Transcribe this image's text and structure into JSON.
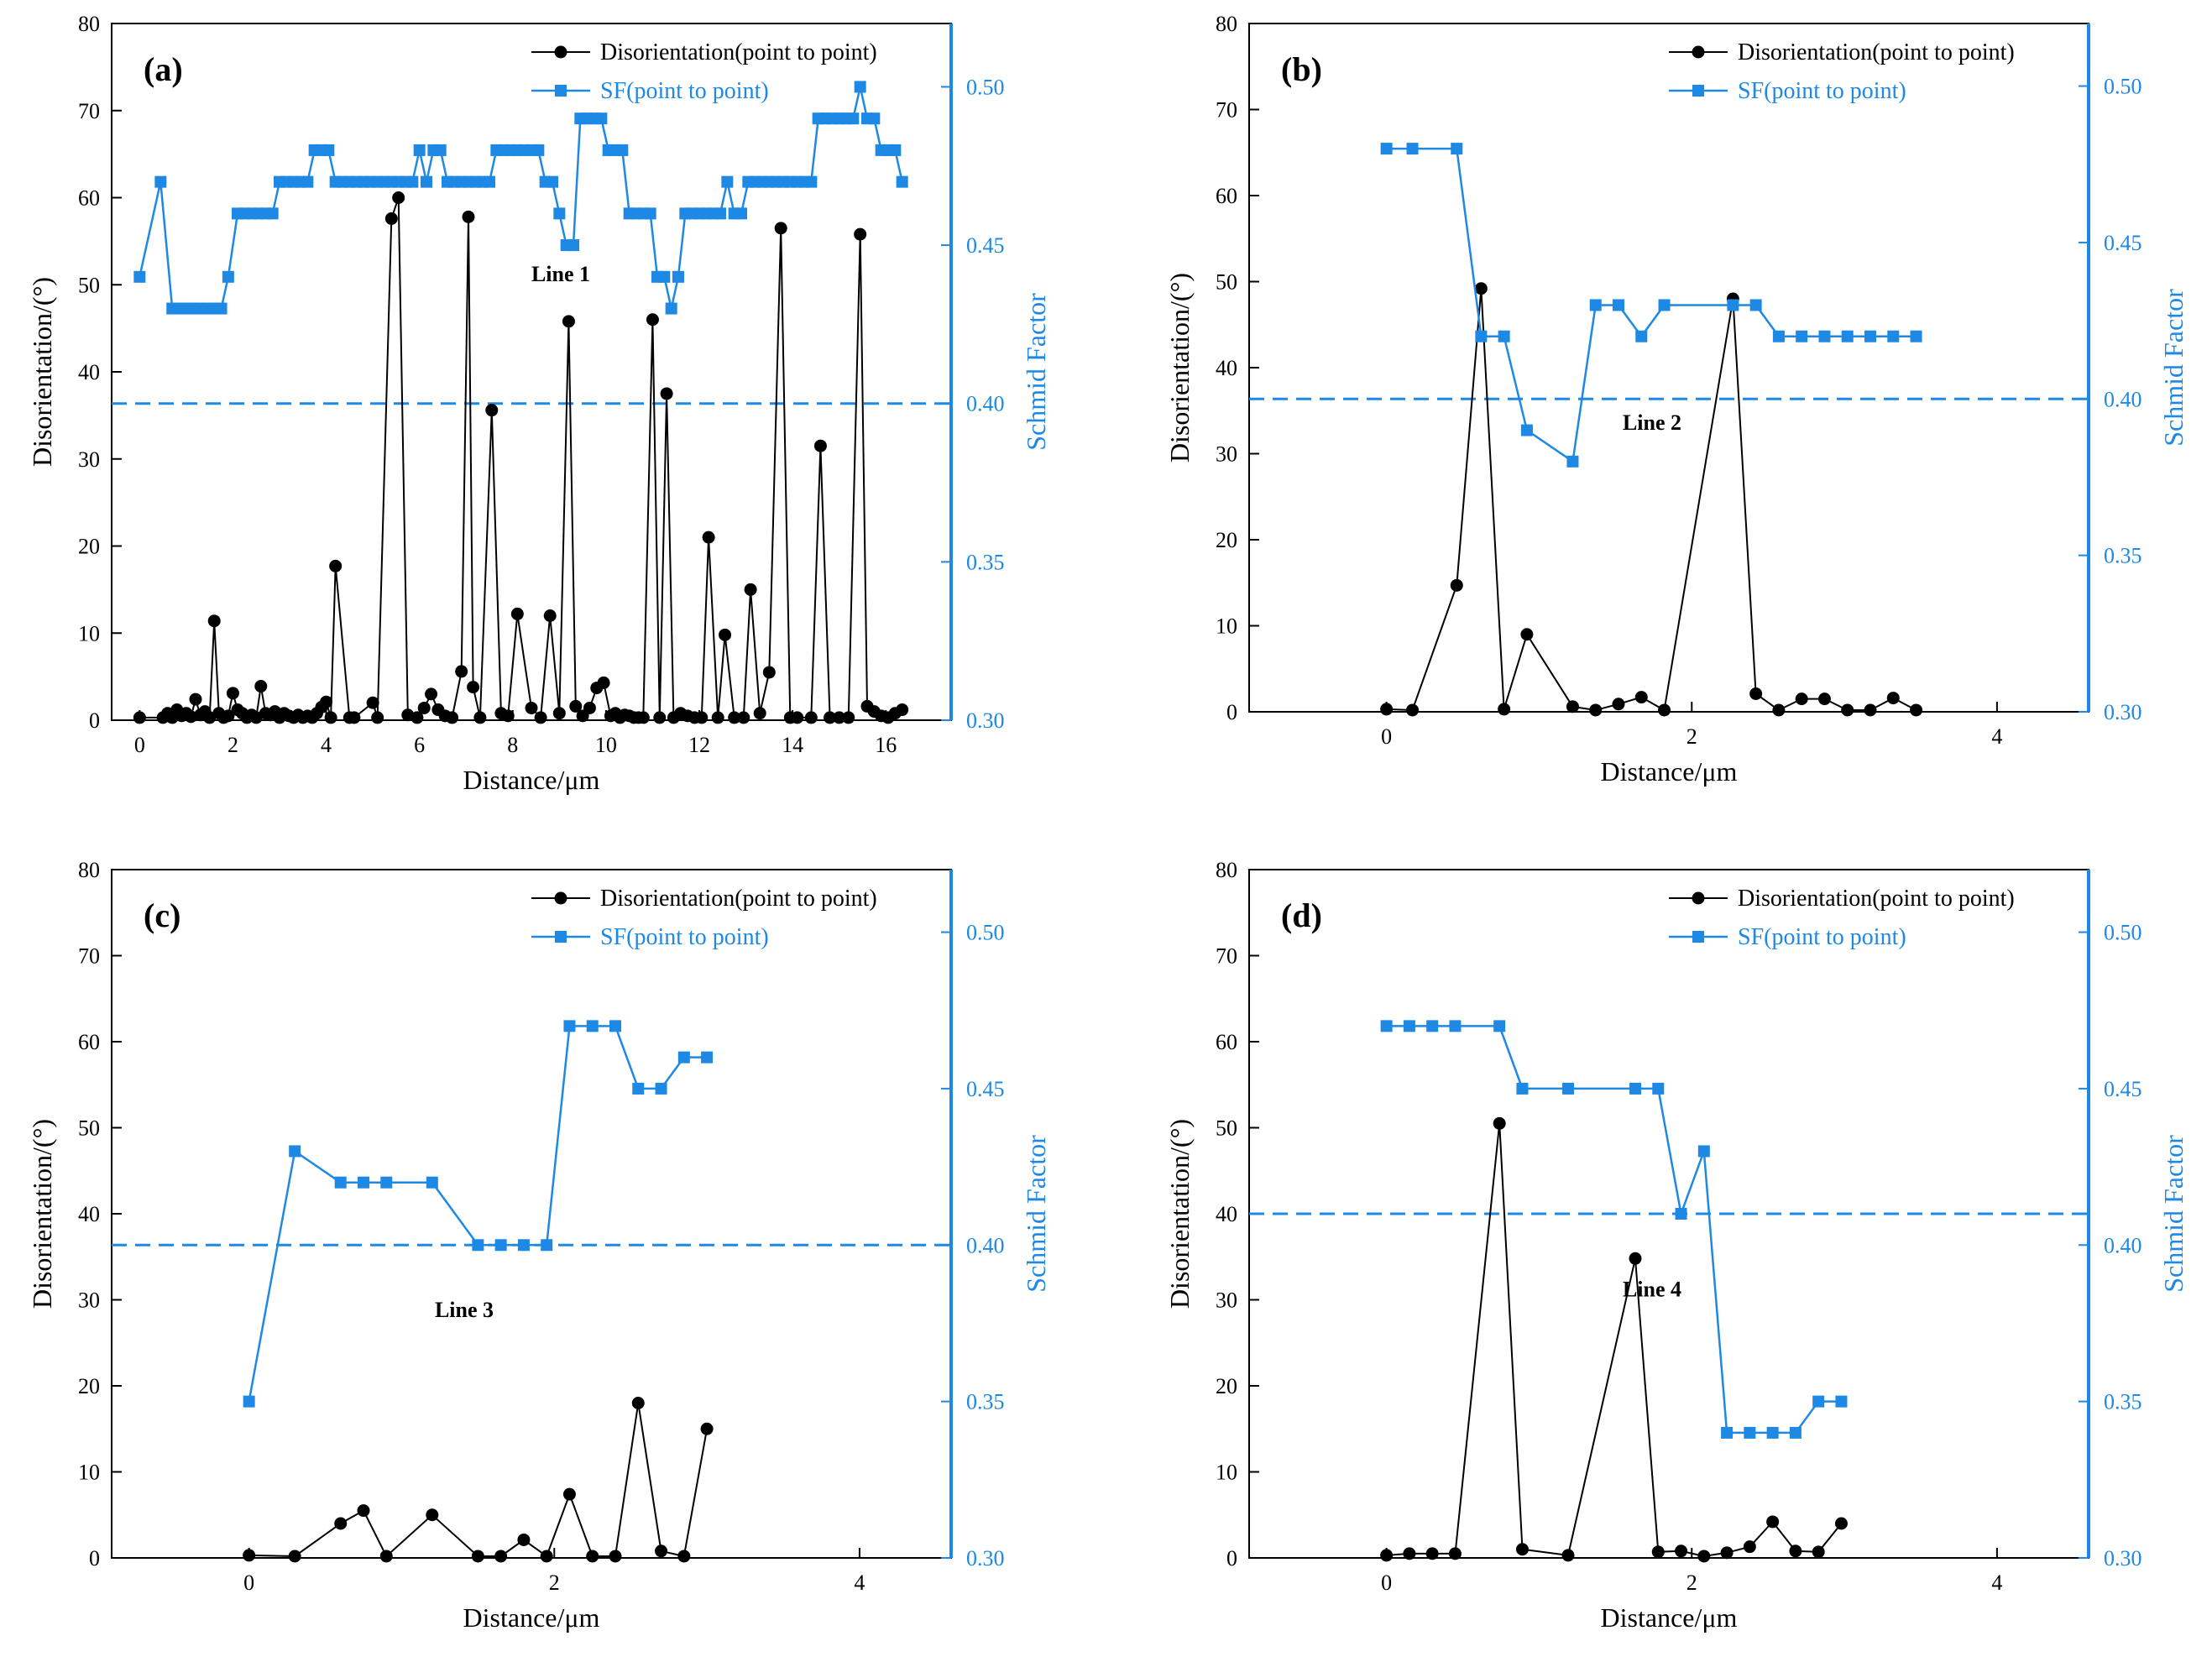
{
  "colors": {
    "disorientation": "#000000",
    "sf": "#1e88e5",
    "axis": "#000000"
  },
  "chart_data": [
    {
      "type": "line",
      "panel_label": "(a)",
      "line_label": "Line 1",
      "xlabel": "Distance/μm",
      "ylabel": "Disorientation/(°)",
      "y2label": "Schmid Factor",
      "xlim": [
        -0.6,
        17.4
      ],
      "ylim": [
        0,
        80
      ],
      "y2lim": [
        0.3,
        0.52
      ],
      "xticks": [
        0,
        2,
        4,
        6,
        8,
        10,
        12,
        14,
        16
      ],
      "yticks": [
        0,
        10,
        20,
        30,
        40,
        50,
        60,
        70,
        80
      ],
      "y2ticks": [
        0.3,
        0.35,
        0.4,
        0.45,
        0.5
      ],
      "legend": [
        "Disorientation(point to point)",
        "SF(point to point)"
      ],
      "reference_line": 0.4,
      "series": [
        {
          "name": "Disorientation(point to point)",
          "axis": "left",
          "x": [
            0,
            0.5,
            0.6,
            0.7,
            0.8,
            0.9,
            1,
            1.1,
            1.2,
            1.3,
            1.4,
            1.5,
            1.6,
            1.7,
            1.8,
            1.9,
            2.0,
            2.1,
            2.2,
            2.3,
            2.4,
            2.5,
            2.6,
            2.7,
            2.8,
            2.9,
            3.0,
            3.1,
            3.2,
            3.3,
            3.4,
            3.5,
            3.6,
            3.7,
            3.8,
            3.9,
            4.0,
            4.1,
            4.2,
            4.5,
            4.6,
            5.0,
            5.1,
            5.4,
            5.55,
            5.75,
            5.95,
            6.1,
            6.25,
            6.4,
            6.55,
            6.7,
            6.9,
            7.05,
            7.15,
            7.3,
            7.55,
            7.75,
            7.9,
            8.1,
            8.4,
            8.6,
            8.8,
            9.0,
            9.2,
            9.35,
            9.5,
            9.65,
            9.8,
            9.95,
            10.1,
            10.2,
            10.3,
            10.4,
            10.5,
            10.6,
            10.7,
            10.8,
            11.0,
            11.15,
            11.3,
            11.45,
            11.6,
            11.75,
            11.9,
            12.05,
            12.2,
            12.4,
            12.55,
            12.75,
            12.95,
            13.1,
            13.3,
            13.5,
            13.75,
            13.95,
            14.1,
            14.4,
            14.6,
            14.8,
            15.0,
            15.2,
            15.45,
            15.6,
            15.75,
            15.9,
            16.05,
            16.2,
            16.35
          ],
          "values": [
            0.3,
            0.3,
            0.8,
            0.3,
            1.2,
            0.5,
            0.8,
            0.4,
            2.4,
            0.6,
            1.0,
            0.3,
            11.4,
            0.8,
            0.3,
            0.5,
            3.1,
            1.2,
            0.8,
            0.3,
            0.6,
            0.3,
            3.9,
            0.8,
            0.6,
            1.0,
            0.3,
            0.8,
            0.5,
            0.3,
            0.6,
            0.3,
            0.5,
            0.3,
            0.8,
            1.5,
            2.1,
            0.3,
            17.7,
            0.3,
            0.3,
            2.0,
            0.3,
            57.6,
            60.0,
            0.6,
            0.3,
            1.4,
            3.0,
            1.2,
            0.5,
            0.3,
            5.6,
            57.8,
            3.8,
            0.3,
            35.6,
            0.8,
            0.5,
            12.2,
            1.4,
            0.3,
            12.0,
            0.8,
            45.8,
            1.6,
            0.5,
            1.4,
            3.7,
            4.3,
            0.5,
            0.8,
            0.3,
            0.6,
            0.5,
            0.3,
            0.3,
            0.3,
            46.0,
            0.3,
            37.5,
            0.3,
            0.8,
            0.5,
            0.3,
            0.3,
            21.0,
            0.3,
            9.8,
            0.3,
            0.3,
            15.0,
            0.8,
            5.5,
            56.5,
            0.3,
            0.3,
            0.3,
            31.5,
            0.3,
            0.3,
            0.3,
            55.8,
            1.6,
            1.0,
            0.5,
            0.3,
            0.8,
            1.2
          ]
        },
        {
          "name": "SF(point to point)",
          "axis": "right",
          "x": [
            0,
            0.45,
            0.7,
            0.85,
            1.0,
            1.15,
            1.3,
            1.45,
            1.6,
            1.75,
            1.9,
            2.1,
            2.25,
            2.4,
            2.55,
            2.7,
            2.85,
            3.0,
            3.15,
            3.3,
            3.45,
            3.6,
            3.75,
            3.9,
            4.05,
            4.2,
            4.35,
            4.5,
            4.65,
            4.8,
            4.95,
            5.1,
            5.25,
            5.4,
            5.55,
            5.7,
            5.85,
            6.0,
            6.15,
            6.3,
            6.45,
            6.6,
            6.75,
            6.9,
            7.05,
            7.2,
            7.35,
            7.5,
            7.65,
            7.8,
            7.95,
            8.1,
            8.25,
            8.4,
            8.55,
            8.7,
            8.85,
            9.0,
            9.15,
            9.3,
            9.45,
            9.6,
            9.75,
            9.9,
            10.05,
            10.2,
            10.35,
            10.5,
            10.65,
            10.8,
            10.95,
            11.1,
            11.25,
            11.4,
            11.55,
            11.7,
            11.85,
            12.0,
            12.15,
            12.3,
            12.45,
            12.6,
            12.75,
            12.9,
            13.05,
            13.2,
            13.35,
            13.5,
            13.65,
            13.8,
            13.95,
            14.1,
            14.25,
            14.4,
            14.55,
            14.7,
            14.85,
            15.0,
            15.15,
            15.3,
            15.45,
            15.6,
            15.75,
            15.9,
            16.05,
            16.2,
            16.35
          ],
          "values": [
            0.44,
            0.47,
            0.43,
            0.43,
            0.43,
            0.43,
            0.43,
            0.43,
            0.43,
            0.43,
            0.44,
            0.46,
            0.46,
            0.46,
            0.46,
            0.46,
            0.46,
            0.47,
            0.47,
            0.47,
            0.47,
            0.47,
            0.48,
            0.48,
            0.48,
            0.47,
            0.47,
            0.47,
            0.47,
            0.47,
            0.47,
            0.47,
            0.47,
            0.47,
            0.47,
            0.47,
            0.47,
            0.48,
            0.47,
            0.48,
            0.48,
            0.47,
            0.47,
            0.47,
            0.47,
            0.47,
            0.47,
            0.47,
            0.48,
            0.48,
            0.48,
            0.48,
            0.48,
            0.48,
            0.48,
            0.47,
            0.47,
            0.46,
            0.45,
            0.45,
            0.49,
            0.49,
            0.49,
            0.49,
            0.48,
            0.48,
            0.48,
            0.46,
            0.46,
            0.46,
            0.46,
            0.44,
            0.44,
            0.43,
            0.44,
            0.46,
            0.46,
            0.46,
            0.46,
            0.46,
            0.46,
            0.47,
            0.46,
            0.46,
            0.47,
            0.47,
            0.47,
            0.47,
            0.47,
            0.47,
            0.47,
            0.47,
            0.47,
            0.47,
            0.49,
            0.49,
            0.49,
            0.49,
            0.49,
            0.49,
            0.5,
            0.49,
            0.49,
            0.48,
            0.48,
            0.48,
            0.47
          ]
        }
      ]
    },
    {
      "type": "line",
      "panel_label": "(b)",
      "line_label": "Line 2",
      "xlabel": "Distance/μm",
      "ylabel": "Disorientation/(°)",
      "y2label": "Schmid Factor",
      "xlim": [
        -0.9,
        4.6
      ],
      "ylim": [
        0,
        80
      ],
      "y2lim": [
        0.3,
        0.52
      ],
      "xticks": [
        0,
        2,
        4
      ],
      "yticks": [
        0,
        10,
        20,
        30,
        40,
        50,
        60,
        70,
        80
      ],
      "y2ticks": [
        0.3,
        0.35,
        0.4,
        0.45,
        0.5
      ],
      "legend": [
        "Disorientation(point to point)",
        "SF(point to point)"
      ],
      "reference_line": 0.4,
      "series": [
        {
          "name": "Disorientation(point to point)",
          "axis": "left",
          "x": [
            0,
            0.17,
            0.46,
            0.62,
            0.77,
            0.92,
            1.22,
            1.37,
            1.52,
            1.67,
            1.82,
            2.27,
            2.42,
            2.57,
            2.72,
            2.87,
            3.02,
            3.17,
            3.32,
            3.47
          ],
          "values": [
            0.3,
            0.2,
            14.7,
            49.2,
            0.3,
            9.0,
            0.6,
            0.2,
            0.9,
            1.7,
            0.2,
            48.0,
            2.1,
            0.2,
            1.5,
            1.5,
            0.2,
            0.2,
            1.6,
            0.2
          ]
        },
        {
          "name": "SF(point to point)",
          "axis": "right",
          "x": [
            0,
            0.17,
            0.46,
            0.62,
            0.77,
            0.92,
            1.22,
            1.37,
            1.52,
            1.67,
            1.82,
            2.27,
            2.42,
            2.57,
            2.72,
            2.87,
            3.02,
            3.17,
            3.32,
            3.47
          ],
          "values": [
            0.48,
            0.48,
            0.48,
            0.42,
            0.42,
            0.39,
            0.38,
            0.43,
            0.43,
            0.42,
            0.43,
            0.43,
            0.43,
            0.42,
            0.42,
            0.42,
            0.42,
            0.42,
            0.42,
            0.42
          ]
        }
      ]
    },
    {
      "type": "line",
      "panel_label": "(c)",
      "line_label": "Line 3",
      "xlabel": "Distance/μm",
      "ylabel": "Disorientation/(°)",
      "y2label": "Schmid Factor",
      "xlim": [
        -0.9,
        4.6
      ],
      "ylim": [
        0,
        80
      ],
      "y2lim": [
        0.3,
        0.52
      ],
      "xticks": [
        0,
        2,
        4
      ],
      "yticks": [
        0,
        10,
        20,
        30,
        40,
        50,
        60,
        70,
        80
      ],
      "y2ticks": [
        0.3,
        0.35,
        0.4,
        0.45,
        0.5
      ],
      "legend": [
        "Disorientation(point to point)",
        "SF(point to point)"
      ],
      "reference_line": 0.4,
      "series": [
        {
          "name": "Disorientation(point to point)",
          "axis": "left",
          "x": [
            0,
            0.3,
            0.6,
            0.75,
            0.9,
            1.2,
            1.5,
            1.65,
            1.8,
            1.95,
            2.1,
            2.25,
            2.4,
            2.55,
            2.7,
            2.85,
            3.0
          ],
          "values": [
            0.3,
            0.2,
            4.0,
            5.5,
            0.2,
            5.0,
            0.2,
            0.2,
            2.1,
            0.2,
            7.4,
            0.2,
            0.2,
            18.0,
            0.8,
            0.2,
            15.0
          ]
        },
        {
          "name": "SF(point to point)",
          "axis": "right",
          "x": [
            0,
            0.3,
            0.6,
            0.75,
            0.9,
            1.2,
            1.5,
            1.65,
            1.8,
            1.95,
            2.1,
            2.25,
            2.4,
            2.55,
            2.7,
            2.85,
            3.0
          ],
          "values": [
            0.35,
            0.43,
            0.42,
            0.42,
            0.42,
            0.42,
            0.4,
            0.4,
            0.4,
            0.4,
            0.47,
            0.47,
            0.47,
            0.45,
            0.45,
            0.46,
            0.46
          ]
        }
      ]
    },
    {
      "type": "line",
      "panel_label": "(d)",
      "line_label": "Line 4",
      "xlabel": "Distance/μm",
      "ylabel": "Disorientation/(°)",
      "y2label": "Schmid Factor",
      "xlim": [
        -0.9,
        4.6
      ],
      "ylim": [
        0,
        80
      ],
      "y2lim": [
        0.3,
        0.52
      ],
      "xticks": [
        0,
        2,
        4
      ],
      "yticks": [
        0,
        10,
        20,
        30,
        40,
        50,
        60,
        70,
        80
      ],
      "y2ticks": [
        0.3,
        0.35,
        0.4,
        0.45,
        0.5
      ],
      "legend": [
        "Disorientation(point to point)",
        "SF(point to point)"
      ],
      "reference_line": 0.41,
      "series": [
        {
          "name": "Disorientation(point to point)",
          "axis": "left",
          "x": [
            0,
            0.15,
            0.3,
            0.45,
            0.74,
            0.89,
            1.19,
            1.63,
            1.78,
            1.93,
            2.08,
            2.23,
            2.38,
            2.53,
            2.68,
            2.83,
            2.98
          ],
          "values": [
            0.3,
            0.5,
            0.5,
            0.5,
            50.5,
            1.0,
            0.3,
            34.8,
            0.7,
            0.8,
            0.2,
            0.6,
            1.3,
            4.2,
            0.8,
            0.7,
            4.0
          ]
        },
        {
          "name": "SF(point to point)",
          "axis": "right",
          "x": [
            0,
            0.15,
            0.3,
            0.45,
            0.74,
            0.89,
            1.19,
            1.63,
            1.78,
            1.93,
            2.08,
            2.23,
            2.38,
            2.53,
            2.68,
            2.83,
            2.98
          ],
          "values": [
            0.47,
            0.47,
            0.47,
            0.47,
            0.47,
            0.45,
            0.45,
            0.45,
            0.45,
            0.41,
            0.43,
            0.34,
            0.34,
            0.34,
            0.34,
            0.35,
            0.35
          ]
        }
      ]
    }
  ]
}
